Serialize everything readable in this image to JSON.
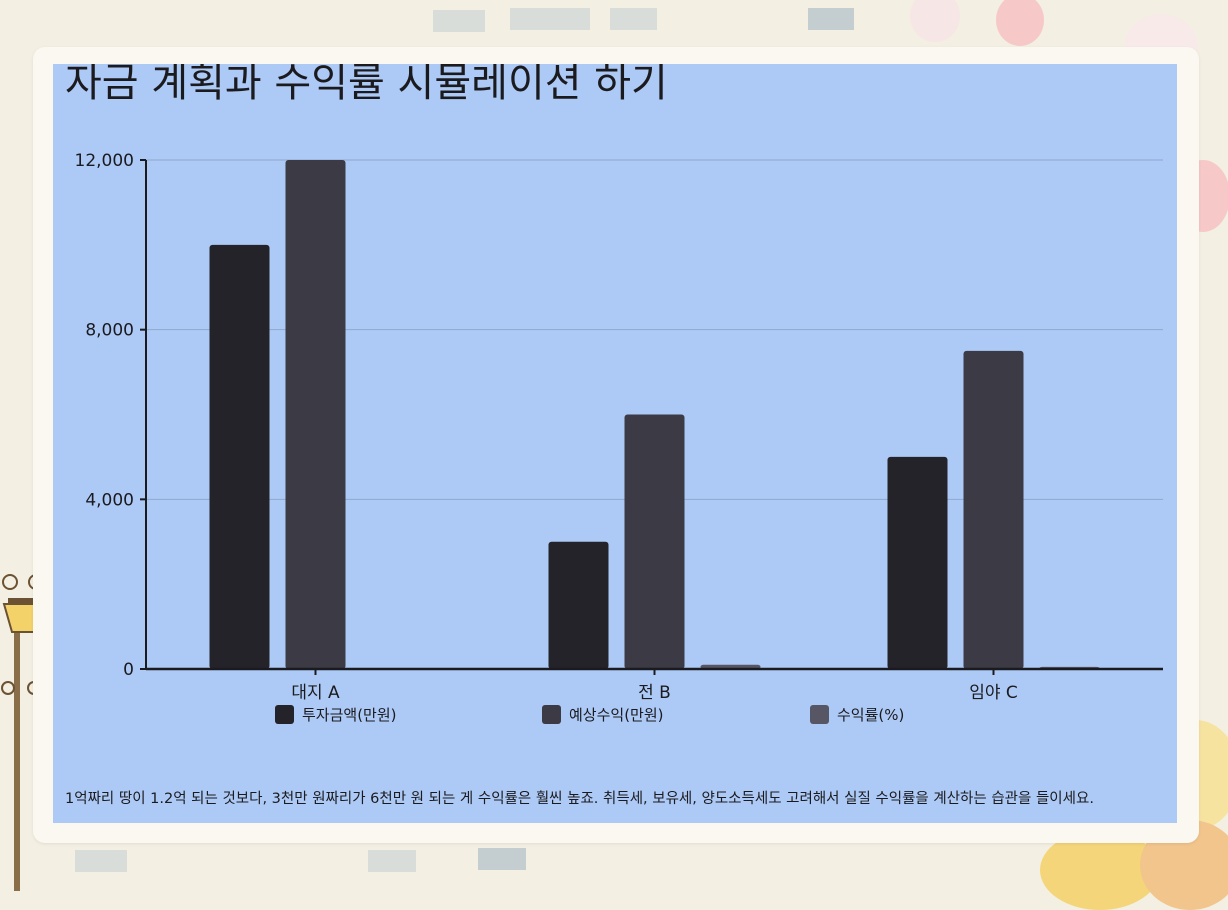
{
  "title": "자금 계획과 수익률 시뮬레이션 하기",
  "caption": "1억짜리 땅이 1.2억 되는 것보다, 3천만 원짜리가 6천만 원 되는 게 수익률은 훨씬 높죠. 취득세, 보유세, 양도소득세도 고려해서 실질 수익률을 계산하는 습관을 들이세요.",
  "colors": {
    "panel": "#adcaf6",
    "series": [
      "#242329",
      "#3b3a45",
      "#575664"
    ],
    "grid": "#8fa7cf",
    "axis": "#1b1b1f"
  },
  "chart_data": {
    "type": "bar",
    "categories": [
      "대지 A",
      "전 B",
      "임야 C"
    ],
    "series": [
      {
        "name": "투자금액(만원)",
        "values": [
          10000,
          3000,
          5000
        ]
      },
      {
        "name": "예상수익(만원)",
        "values": [
          12000,
          6000,
          7500
        ]
      },
      {
        "name": "수익률(%)",
        "values": [
          20,
          100,
          50
        ]
      }
    ],
    "ylim": [
      0,
      12000
    ],
    "yticks": [
      0,
      4000,
      8000,
      12000
    ],
    "ytick_labels": [
      "0",
      "4,000",
      "8,000",
      "12,000"
    ],
    "grid": true,
    "legend": "bottom"
  }
}
